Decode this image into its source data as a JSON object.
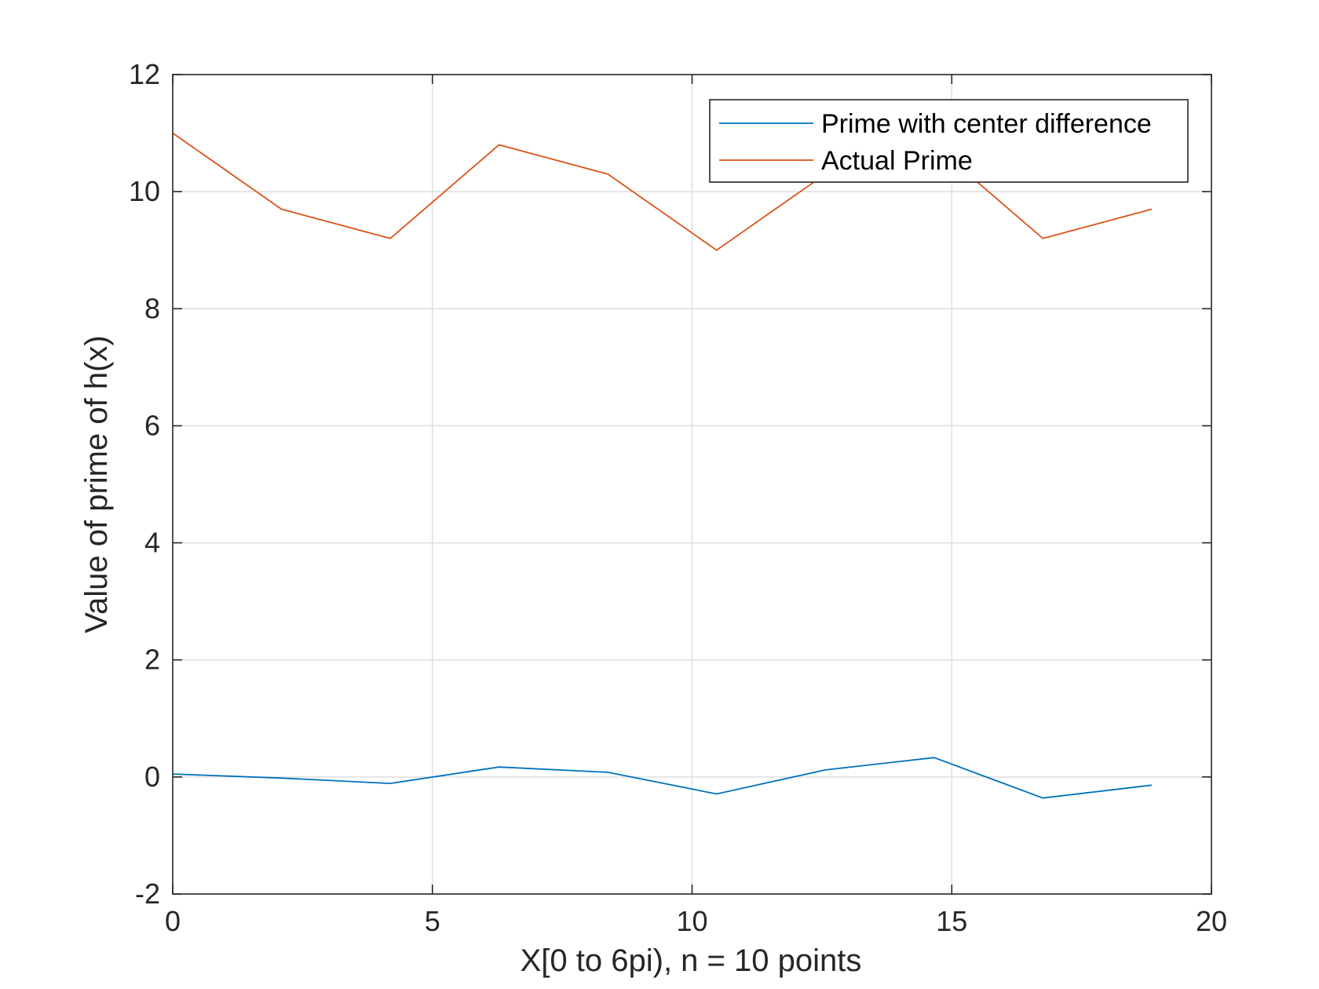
{
  "chart_data": {
    "type": "line",
    "title": "",
    "xlabel": "X[0 to 6pi), n = 10 points",
    "ylabel": "Value of prime of h(x)",
    "xlim": [
      0,
      20
    ],
    "ylim": [
      -2,
      12
    ],
    "xticks": [
      0,
      5,
      10,
      15,
      20
    ],
    "yticks": [
      -2,
      0,
      2,
      4,
      6,
      8,
      10,
      12
    ],
    "grid": true,
    "legend_position": "top-right",
    "x": [
      0,
      2.094,
      4.189,
      6.283,
      8.378,
      10.472,
      12.566,
      14.661,
      16.755,
      18.85
    ],
    "series": [
      {
        "name": "Prime with center difference",
        "color": "#0072BD",
        "values": [
          0.05,
          -0.02,
          -0.11,
          0.17,
          0.08,
          -0.29,
          0.12,
          0.33,
          -0.36,
          -0.14
        ]
      },
      {
        "name": "Actual Prime",
        "color": "#D95319",
        "values": [
          11.0,
          9.7,
          9.2,
          10.8,
          10.3,
          9.0,
          10.3,
          10.8,
          9.2,
          9.7
        ]
      }
    ]
  }
}
